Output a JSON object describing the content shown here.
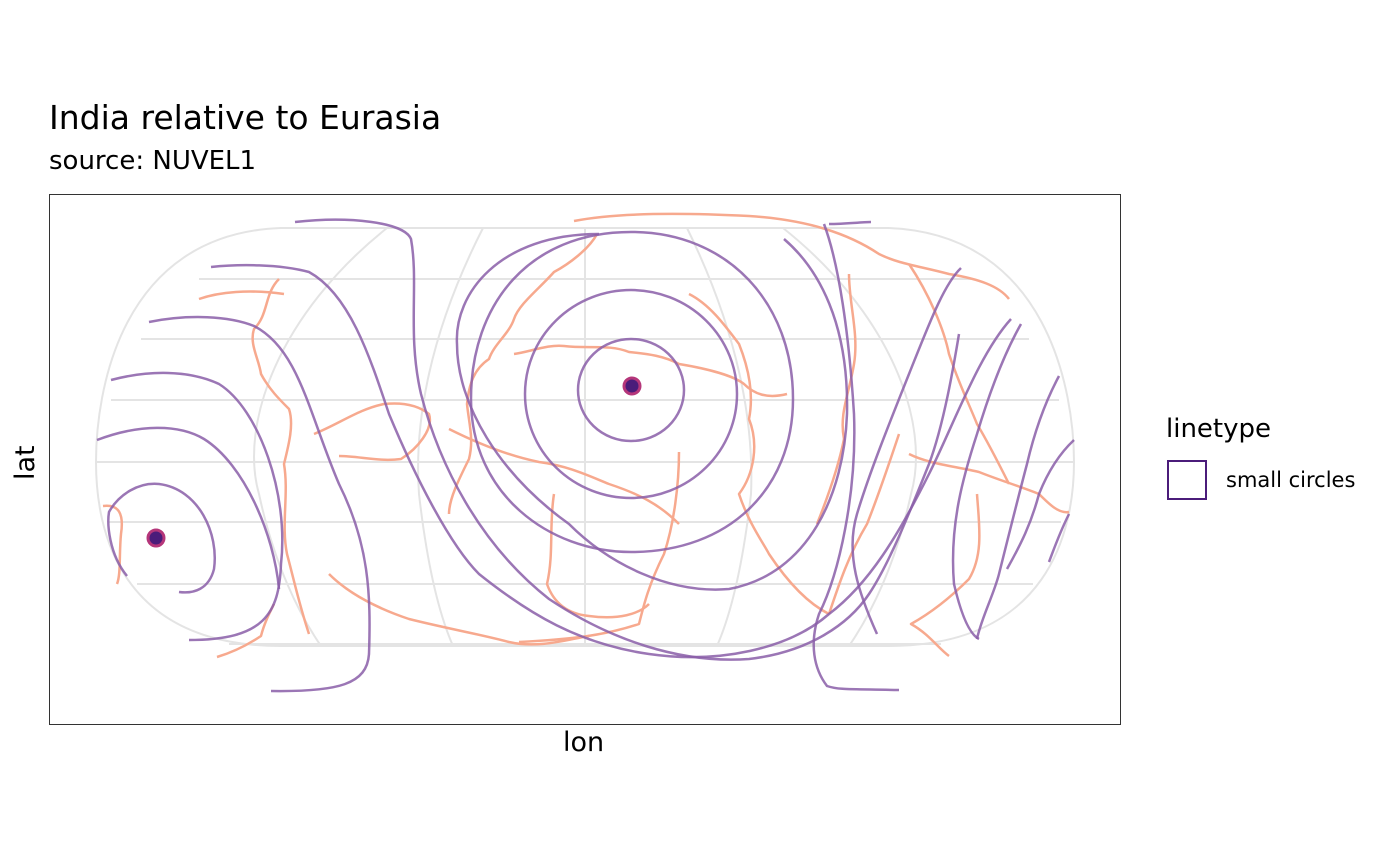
{
  "title": "India relative to Eurasia",
  "subtitle": "source: NUVEL1",
  "axes": {
    "xlabel": "lon",
    "ylabel": "lat"
  },
  "legend": {
    "title": "linetype",
    "entries": [
      {
        "label": "small circles",
        "color": "#4b1c7a"
      }
    ]
  },
  "colors": {
    "small_circles": "#8a5ea8",
    "plate_boundaries": "#f7a98e",
    "pole_fill": "#4b1c7a",
    "pole_ring": "#b5367a",
    "graticule": "#e4e4e4",
    "frame": "#333333"
  },
  "map_data": {
    "projection": "equal-earth-like",
    "rotation_poles": [
      {
        "lon": 28,
        "lat": 24
      },
      {
        "lon": -152,
        "lat": -24
      }
    ],
    "small_circle_count": 7
  }
}
